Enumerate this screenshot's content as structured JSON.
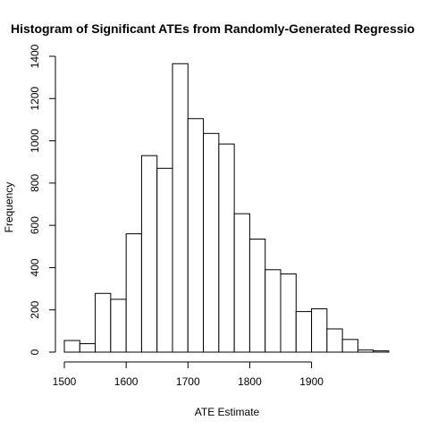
{
  "chart_data": {
    "type": "bar",
    "title": "Histogram of Significant ATEs from Randomly-Generated Regressio",
    "xlabel": "ATE Estimate",
    "ylabel": "Frequency",
    "bin_width": 25,
    "bins": [
      {
        "start": 1500,
        "end": 1525,
        "count": 55
      },
      {
        "start": 1525,
        "end": 1550,
        "count": 40
      },
      {
        "start": 1550,
        "end": 1575,
        "count": 278
      },
      {
        "start": 1575,
        "end": 1600,
        "count": 250
      },
      {
        "start": 1600,
        "end": 1625,
        "count": 560
      },
      {
        "start": 1625,
        "end": 1650,
        "count": 930
      },
      {
        "start": 1650,
        "end": 1675,
        "count": 870
      },
      {
        "start": 1675,
        "end": 1700,
        "count": 1365
      },
      {
        "start": 1700,
        "end": 1725,
        "count": 1105
      },
      {
        "start": 1725,
        "end": 1750,
        "count": 1035
      },
      {
        "start": 1750,
        "end": 1775,
        "count": 985
      },
      {
        "start": 1775,
        "end": 1800,
        "count": 655
      },
      {
        "start": 1800,
        "end": 1825,
        "count": 535
      },
      {
        "start": 1825,
        "end": 1850,
        "count": 390
      },
      {
        "start": 1850,
        "end": 1875,
        "count": 370
      },
      {
        "start": 1875,
        "end": 1900,
        "count": 192
      },
      {
        "start": 1900,
        "end": 1925,
        "count": 205
      },
      {
        "start": 1925,
        "end": 1950,
        "count": 110
      },
      {
        "start": 1950,
        "end": 1975,
        "count": 60
      },
      {
        "start": 1975,
        "end": 2000,
        "count": 10
      },
      {
        "start": 2000,
        "end": 2025,
        "count": 6
      }
    ],
    "xlim": [
      1500,
      2025
    ],
    "ylim": [
      0,
      1400
    ],
    "x_ticks": [
      {
        "value": 1500,
        "label": "1500"
      },
      {
        "value": 1600,
        "label": "1600"
      },
      {
        "value": 1700,
        "label": "1700"
      },
      {
        "value": 1800,
        "label": "1800"
      },
      {
        "value": 1900,
        "label": "1900"
      }
    ],
    "y_ticks": [
      {
        "value": 0,
        "label": "0"
      },
      {
        "value": 200,
        "label": "200"
      },
      {
        "value": 400,
        "label": "400"
      },
      {
        "value": 600,
        "label": "600"
      },
      {
        "value": 800,
        "label": "800"
      },
      {
        "value": 1000,
        "label": "1000"
      },
      {
        "value": 1200,
        "label": "1200"
      },
      {
        "value": 1400,
        "label": "1400"
      }
    ],
    "grid": false,
    "legend": "none"
  }
}
